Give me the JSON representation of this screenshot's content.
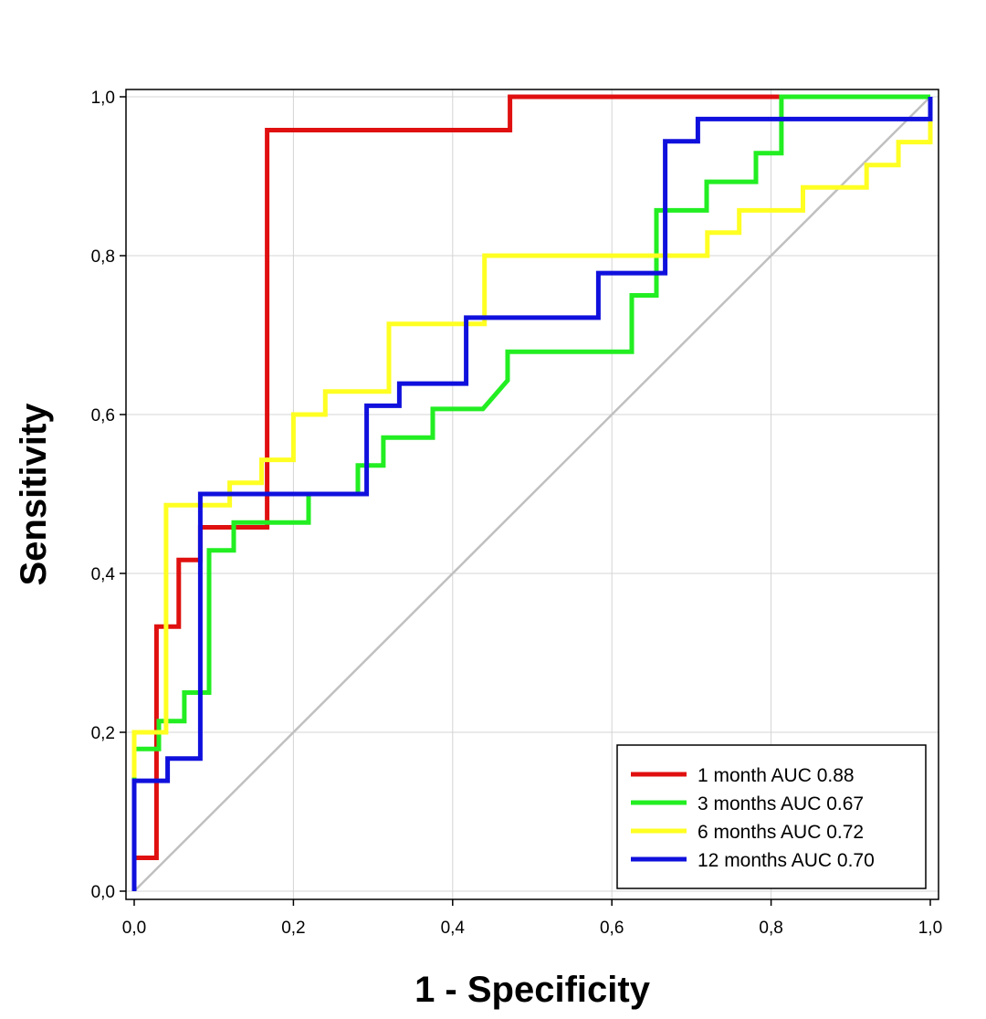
{
  "chart_data": {
    "type": "line",
    "title": "",
    "xlabel": "1 - Specificity",
    "ylabel": "Sensitivity",
    "xlim": [
      0,
      1
    ],
    "ylim": [
      0,
      1
    ],
    "xticks": [
      "0,0",
      "0,2",
      "0,4",
      "0,6",
      "0,8",
      "1,0"
    ],
    "yticks": [
      "0,0",
      "0,2",
      "0,4",
      "0,6",
      "0,8",
      "1,0"
    ],
    "grid": true,
    "legend_position": "bottom-right",
    "reference_line": {
      "from": [
        0,
        0
      ],
      "to": [
        1,
        1
      ],
      "color": "#c0c0c0"
    },
    "series": [
      {
        "name": "1 month AUC 0.88",
        "color": "#e01010",
        "x": [
          0,
          0,
          0.028,
          0.028,
          0.056,
          0.056,
          0.083,
          0.083,
          0.167,
          0.167,
          0.472,
          0.472,
          1.0
        ],
        "y": [
          0,
          0.042,
          0.042,
          0.333,
          0.333,
          0.417,
          0.417,
          0.458,
          0.458,
          0.958,
          0.958,
          1.0,
          1.0
        ]
      },
      {
        "name": "3 months AUC 0.67",
        "color": "#22ee22",
        "x": [
          0,
          0,
          0.031,
          0.031,
          0.063,
          0.063,
          0.094,
          0.094,
          0.125,
          0.125,
          0.219,
          0.219,
          0.281,
          0.281,
          0.313,
          0.313,
          0.375,
          0.375,
          0.438,
          0.469,
          0.469,
          0.625,
          0.625,
          0.656,
          0.656,
          0.719,
          0.719,
          0.781,
          0.781,
          0.813,
          0.813,
          1.0
        ],
        "y": [
          0,
          0.179,
          0.179,
          0.214,
          0.214,
          0.25,
          0.25,
          0.429,
          0.429,
          0.464,
          0.464,
          0.5,
          0.5,
          0.536,
          0.536,
          0.571,
          0.571,
          0.607,
          0.607,
          0.643,
          0.679,
          0.679,
          0.75,
          0.75,
          0.857,
          0.857,
          0.893,
          0.893,
          0.929,
          0.929,
          1.0,
          1.0
        ]
      },
      {
        "name": "6 months AUC 0.72",
        "color": "#ffff22",
        "x": [
          0,
          0,
          0.04,
          0.04,
          0.12,
          0.12,
          0.16,
          0.16,
          0.2,
          0.2,
          0.24,
          0.24,
          0.32,
          0.32,
          0.44,
          0.44,
          0.72,
          0.72,
          0.76,
          0.76,
          0.84,
          0.84,
          0.92,
          0.92,
          0.96,
          0.96,
          1.0,
          1.0
        ],
        "y": [
          0.143,
          0.2,
          0.2,
          0.486,
          0.486,
          0.514,
          0.514,
          0.543,
          0.543,
          0.6,
          0.6,
          0.629,
          0.629,
          0.714,
          0.714,
          0.8,
          0.8,
          0.829,
          0.829,
          0.857,
          0.857,
          0.886,
          0.886,
          0.914,
          0.914,
          0.943,
          0.943,
          1.0
        ]
      },
      {
        "name": "12 months AUC 0.70",
        "color": "#1010dd",
        "x": [
          0,
          0,
          0.042,
          0.042,
          0.083,
          0.083,
          0.292,
          0.292,
          0.333,
          0.333,
          0.417,
          0.417,
          0.583,
          0.583,
          0.667,
          0.667,
          0.708,
          0.708,
          1.0,
          1.0
        ],
        "y": [
          0,
          0.139,
          0.139,
          0.167,
          0.167,
          0.5,
          0.5,
          0.611,
          0.611,
          0.639,
          0.639,
          0.722,
          0.722,
          0.778,
          0.778,
          0.944,
          0.944,
          0.972,
          0.972,
          1.0
        ]
      }
    ]
  }
}
